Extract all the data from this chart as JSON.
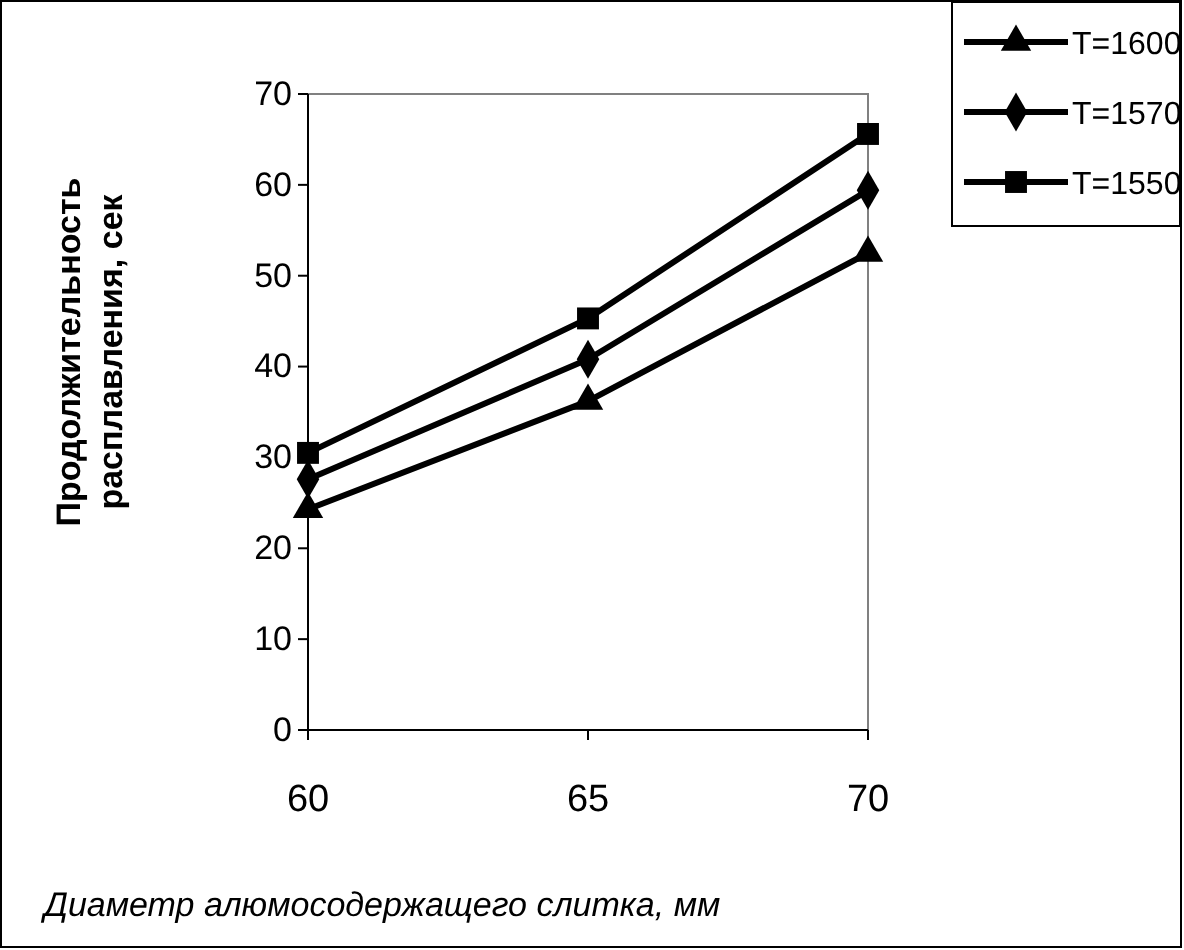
{
  "chart_data": {
    "type": "line",
    "xlabel": "Диаметр алюмосодержащего слитка, мм",
    "ylabel": "Продолжительность\nрасплавления, сек",
    "x": [
      60,
      65,
      70
    ],
    "xlim": [
      60,
      70
    ],
    "xticks": [
      60,
      65,
      70
    ],
    "ylim": [
      0,
      70
    ],
    "yticks": [
      0,
      10,
      20,
      30,
      40,
      50,
      60,
      70
    ],
    "grid": false,
    "legend": "top right",
    "line_style": "solid",
    "series": [
      {
        "name": "T=1600",
        "color": "#000000",
        "marker": "triangle",
        "values": [
          24.3,
          36.2,
          52.5
        ]
      },
      {
        "name": "T=1570",
        "color": "#000000",
        "marker": "diamond",
        "values": [
          27.6,
          40.8,
          59.4
        ]
      },
      {
        "name": "T=1550",
        "color": "#000000",
        "marker": "square",
        "values": [
          30.5,
          45.3,
          65.6
        ]
      }
    ]
  }
}
